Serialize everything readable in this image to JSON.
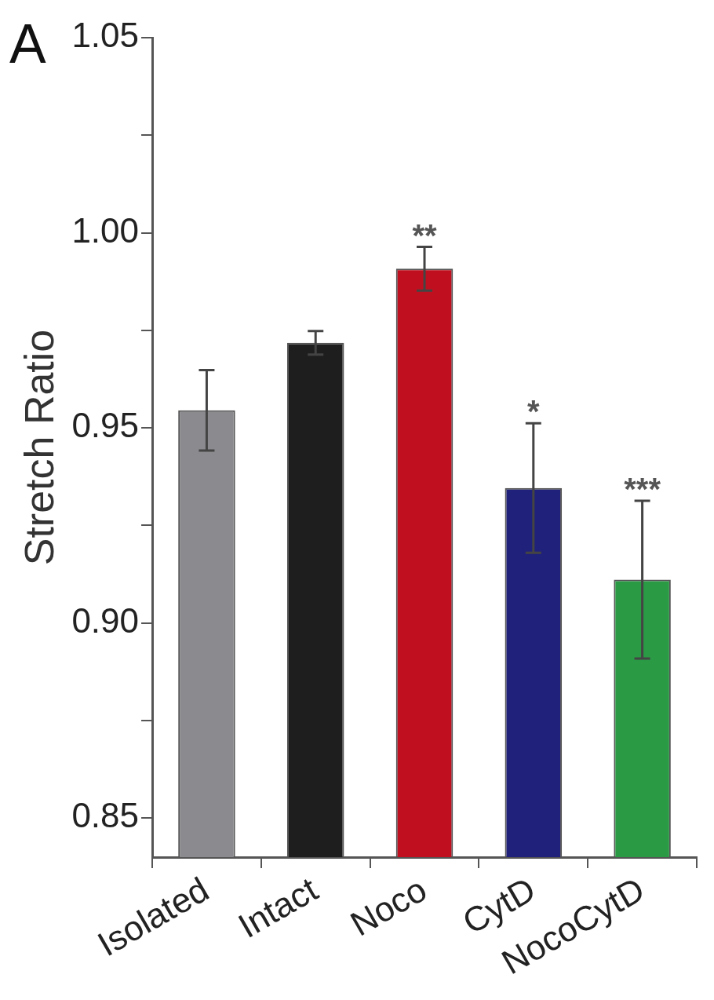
{
  "chart_data": {
    "type": "bar",
    "ylabel": "Stretch Ratio",
    "categories": [
      "Isolated",
      "Intact",
      "Noco",
      "CytD",
      "NocoCytD"
    ],
    "values": [
      0.9545,
      0.9718,
      0.9908,
      0.9346,
      0.9111
    ],
    "colors": [
      "#8a8a8f",
      "#1e1e1e",
      "#c0101f",
      "#20217a",
      "#2a9a45"
    ],
    "errors": [
      0.0103,
      0.003,
      0.0056,
      0.0166,
      0.0202
    ],
    "ylim": [
      0.84,
      1.05
    ],
    "yticks": [
      0.85,
      {
        "value": 0.875,
        "label": null
      },
      {
        "value": 0.9,
        "label": "0.90"
      },
      {
        "value": 0.925,
        "label": null
      },
      0.95,
      {
        "value": 0.975,
        "label": null
      },
      {
        "value": 1,
        "label": "1.00"
      },
      {
        "value": 1.025,
        "label": null
      },
      1.05
    ],
    "annotations": [
      "A",
      {
        "text": "**",
        "x": "Noco",
        "y": 0.9964
      },
      {
        "text": "*",
        "x": "CytD",
        "y": 0.9512
      },
      {
        "text": "***",
        "x": "NocoCytD",
        "y": 0.9313
      }
    ],
    "grid": false,
    "legend": false
  }
}
